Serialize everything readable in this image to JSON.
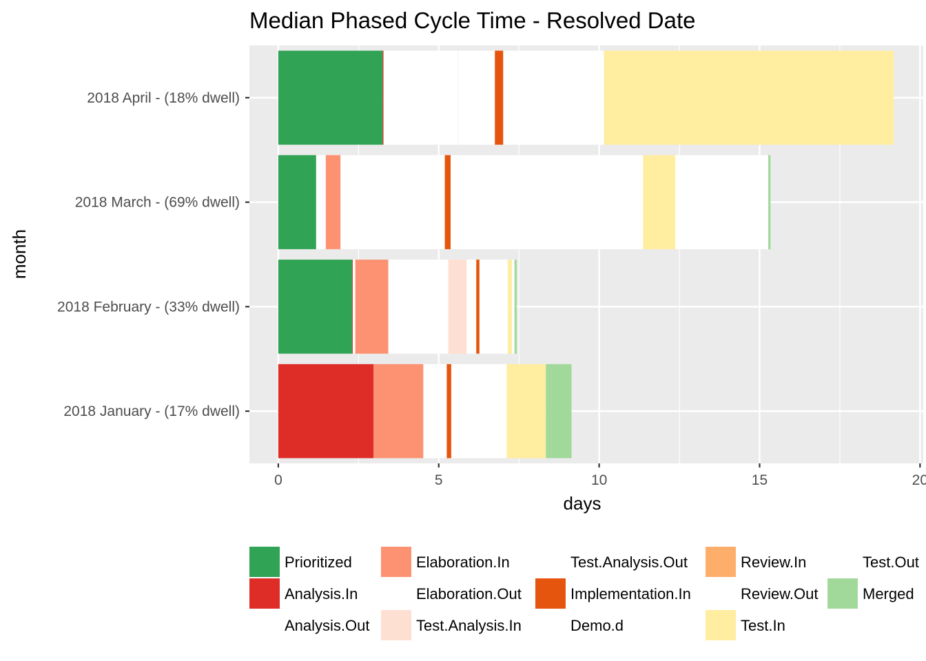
{
  "chart_data": {
    "type": "bar",
    "orientation": "horizontal",
    "stacked": true,
    "title": "Median Phased Cycle Time - Resolved Date",
    "xlabel": "days",
    "ylabel": "month",
    "xlim": [
      -0.9,
      20.1
    ],
    "xticks": [
      0,
      5,
      10,
      15,
      20
    ],
    "grid": true,
    "legend_position": "bottom",
    "categories": [
      "2018 April - (18% dwell)",
      "2018 March - (69% dwell)",
      "2018 February - (33% dwell)",
      "2018 January - (17% dwell)"
    ],
    "series": [
      {
        "name": "Prioritized",
        "color": "#31a354",
        "values": [
          3.25,
          1.18,
          2.3,
          0
        ]
      },
      {
        "name": "Analysis.In",
        "color": "#de2d26",
        "values": [
          0.03,
          0,
          0.02,
          2.97
        ]
      },
      {
        "name": "Analysis.Out",
        "color": "#ffffff",
        "values": [
          0,
          0.3,
          0.08,
          0
        ]
      },
      {
        "name": "Elaboration.In",
        "color": "#fc9272",
        "values": [
          0,
          0.46,
          1.03,
          1.55
        ]
      },
      {
        "name": "Elaboration.Out",
        "color": "#ffffff",
        "values": [
          2.32,
          3.25,
          1.87,
          0.73
        ]
      },
      {
        "name": "Test.Analysis.In",
        "color": "#fee0d2",
        "values": [
          0.01,
          0,
          0.57,
          0
        ]
      },
      {
        "name": "Test.Analysis.Out",
        "color": "#ffffff",
        "values": [
          1.14,
          0,
          0.3,
          0
        ]
      },
      {
        "name": "Implementation.In",
        "color": "#e6550d",
        "values": [
          0.26,
          0.18,
          0.1,
          0.14
        ]
      },
      {
        "name": "Demo.d",
        "color": "#ffffff",
        "values": [
          3.14,
          6.0,
          0.88,
          1.73
        ]
      },
      {
        "name": "Review.In",
        "color": "#fdae6b",
        "values": [
          0,
          0,
          0,
          0
        ]
      },
      {
        "name": "Review.Out",
        "color": "#ffffff",
        "values": [
          0,
          0,
          0,
          0
        ]
      },
      {
        "name": "Test.In",
        "color": "#ffeda0",
        "values": [
          9.03,
          1.0,
          0.13,
          1.22
        ]
      },
      {
        "name": "Test.Out",
        "color": "#ffffff",
        "values": [
          0,
          2.9,
          0.08,
          0
        ]
      },
      {
        "name": "Merged",
        "color": "#a1d99b",
        "values": [
          0,
          0.07,
          0.07,
          0.8
        ]
      }
    ],
    "legend_columns": [
      [
        "Prioritized",
        "Analysis.In",
        "Analysis.Out"
      ],
      [
        "Elaboration.In",
        "Elaboration.Out",
        "Test.Analysis.In"
      ],
      [
        "Test.Analysis.Out",
        "Implementation.In",
        "Demo.d"
      ],
      [
        "Review.In",
        "Review.Out",
        "Test.In"
      ],
      [
        "Test.Out",
        "Merged"
      ]
    ],
    "colors": {
      "panel_background": "#ebebeb",
      "grid": "#ffffff",
      "tick_text": "#4d4d4d",
      "tick_mark": "#333333"
    }
  }
}
